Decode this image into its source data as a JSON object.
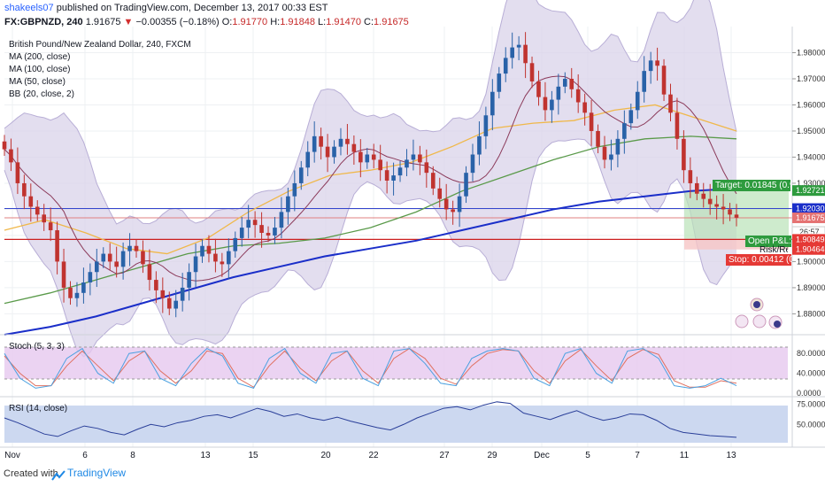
{
  "header": {
    "user": "shakeels07",
    "published_text": "published on TradingView.com, December 13, 2017 00:33 EST",
    "symbol": "FX:GBPNZD, 240",
    "last": "1.91675",
    "change": "−0.00355 (−0.18%)",
    "o_label": "O:",
    "o_val": "1.91770",
    "h_label": "H:",
    "h_val": "1.91848",
    "l_label": "L:",
    "l_val": "1.91470",
    "c_label": "C:",
    "c_val": "1.91675"
  },
  "legend": {
    "title": "British Pound/New Zealand Dollar, 240, FXCM",
    "items": [
      "MA (200, close)",
      "MA (100, close)",
      "MA (50, close)",
      "BB (20, close, 2)"
    ]
  },
  "panes": {
    "stoch_label": "Stoch (5, 3, 3)",
    "rsi_label": "RSI (14, close)"
  },
  "footer": {
    "created_with": "Created with",
    "brand": "TradingView"
  },
  "position": {
    "target_label": "Target: 0.01845 (0.97",
    "target_price": "1.92721",
    "stop_label": "Stop: 0.00412 (0.",
    "stop_price": "1.90464",
    "open_pl_label": "Open P&L: 0",
    "risk_label": "Risk/Rew",
    "entry_price": "1.90876",
    "ma200_price": "1.92030",
    "current_price": "1.91675",
    "countdown": "26:57",
    "stop_line_price": "1.90849"
  },
  "colors": {
    "up": "#2962a8",
    "down": "#c0332f",
    "ma200": "#1a2ec9",
    "ma100": "#5a9a4a",
    "ma50": "#f0b84a",
    "bb": "#7a4a8a",
    "bb_fill": "#d9d3ea",
    "target": "#2e9b3e",
    "stop": "#e53935",
    "stoch_k": "#4aa0e0",
    "stoch_d": "#e07060",
    "rsi": "#2a3f99"
  },
  "chart_data": [
    {
      "type": "candlestick",
      "title": "British Pound/New Zealand Dollar, 240, FXCM",
      "x_tick_labels": [
        "Nov",
        "6",
        "8",
        "13",
        "15",
        "20",
        "22",
        "27",
        "29",
        "Dec",
        "5",
        "7",
        "11",
        "13"
      ],
      "ylim": [
        1.872,
        1.99
      ],
      "y_ticks": [
        1.88,
        1.89,
        1.9,
        1.91,
        1.92,
        1.93,
        1.94,
        1.95,
        1.96,
        1.97,
        1.98
      ],
      "y_tick_labels": [
        "1.88000",
        "1.89000",
        "1.90000",
        "1.91000",
        "1.92000",
        "1.93000",
        "1.94000",
        "1.95000",
        "1.96000",
        "1.97000",
        "1.98000"
      ],
      "close_series": [
        1.943,
        1.938,
        1.93,
        1.925,
        1.921,
        1.918,
        1.915,
        1.912,
        1.9,
        1.89,
        1.886,
        1.888,
        1.892,
        1.896,
        1.9,
        1.903,
        1.9,
        1.898,
        1.904,
        1.906,
        1.904,
        1.899,
        1.893,
        1.889,
        1.886,
        1.882,
        1.885,
        1.89,
        1.896,
        1.902,
        1.906,
        1.903,
        1.9,
        1.899,
        1.904,
        1.909,
        1.913,
        1.916,
        1.914,
        1.911,
        1.91,
        1.913,
        1.919,
        1.925,
        1.93,
        1.936,
        1.942,
        1.948,
        1.944,
        1.94,
        1.944,
        1.947,
        1.945,
        1.942,
        1.938,
        1.941,
        1.939,
        1.935,
        1.931,
        1.933,
        1.936,
        1.939,
        1.941,
        1.938,
        1.934,
        1.928,
        1.924,
        1.92,
        1.919,
        1.925,
        1.934,
        1.941,
        1.948,
        1.956,
        1.965,
        1.972,
        1.978,
        1.982,
        1.983,
        1.976,
        1.969,
        1.963,
        1.958,
        1.962,
        1.967,
        1.97,
        1.966,
        1.961,
        1.957,
        1.95,
        1.944,
        1.939,
        1.941,
        1.947,
        1.953,
        1.958,
        1.965,
        1.973,
        1.977,
        1.975,
        1.964,
        1.957,
        1.947,
        1.935,
        1.93,
        1.926,
        1.924,
        1.922,
        1.921,
        1.92,
        1.918,
        1.9168
      ],
      "series": [
        {
          "name": "MA (200, close)",
          "values": [
            1.872,
            1.875,
            1.879,
            1.884,
            1.889,
            1.894,
            1.898,
            1.902,
            1.905,
            1.908,
            1.912,
            1.916,
            1.92,
            1.923,
            1.925,
            1.927,
            1.928
          ]
        },
        {
          "name": "MA (100, close)",
          "values": [
            1.884,
            1.888,
            1.893,
            1.898,
            1.903,
            1.906,
            1.907,
            1.909,
            1.913,
            1.919,
            1.927,
            1.933,
            1.939,
            1.944,
            1.947,
            1.948,
            1.947
          ]
        },
        {
          "name": "MA (50, close)",
          "values": [
            1.912,
            1.916,
            1.911,
            1.905,
            1.903,
            1.909,
            1.919,
            1.927,
            1.933,
            1.935,
            1.938,
            1.944,
            1.951,
            1.953,
            1.954,
            1.958,
            1.96,
            1.955,
            1.95
          ]
        }
      ]
    },
    {
      "type": "line",
      "title": "Stoch (5, 3, 3)",
      "ylim": [
        0,
        100
      ],
      "y_tick_labels": [
        "80.0000",
        "40.0000",
        "0.0000"
      ],
      "series": [
        {
          "name": "%K",
          "values": [
            80,
            30,
            10,
            15,
            70,
            90,
            40,
            20,
            80,
            85,
            30,
            15,
            60,
            90,
            75,
            20,
            10,
            70,
            90,
            40,
            20,
            80,
            85,
            30,
            15,
            85,
            90,
            60,
            20,
            15,
            70,
            85,
            90,
            85,
            30,
            15,
            80,
            90,
            40,
            20,
            85,
            90,
            70,
            15,
            10,
            15,
            30,
            15
          ]
        },
        {
          "name": "%D",
          "values": [
            75,
            40,
            15,
            15,
            55,
            85,
            55,
            25,
            65,
            85,
            45,
            20,
            45,
            85,
            80,
            30,
            12,
            55,
            85,
            50,
            25,
            65,
            85,
            45,
            20,
            70,
            90,
            70,
            30,
            18,
            55,
            80,
            88,
            85,
            45,
            20,
            65,
            88,
            55,
            25,
            70,
            88,
            78,
            25,
            12,
            12,
            25,
            20
          ]
        }
      ]
    },
    {
      "type": "line",
      "title": "RSI (14, close)",
      "ylim": [
        25,
        80
      ],
      "y_tick_labels": [
        "75.0000",
        "50.0000"
      ],
      "series": [
        {
          "name": "RSI",
          "values": [
            58,
            52,
            45,
            38,
            35,
            42,
            48,
            45,
            40,
            37,
            44,
            50,
            47,
            52,
            55,
            60,
            62,
            58,
            64,
            70,
            66,
            60,
            63,
            58,
            55,
            59,
            54,
            50,
            46,
            43,
            50,
            58,
            64,
            70,
            72,
            68,
            74,
            78,
            76,
            64,
            60,
            56,
            62,
            67,
            60,
            55,
            58,
            63,
            62,
            55,
            45,
            40,
            38,
            36,
            35,
            34
          ]
        }
      ]
    }
  ]
}
